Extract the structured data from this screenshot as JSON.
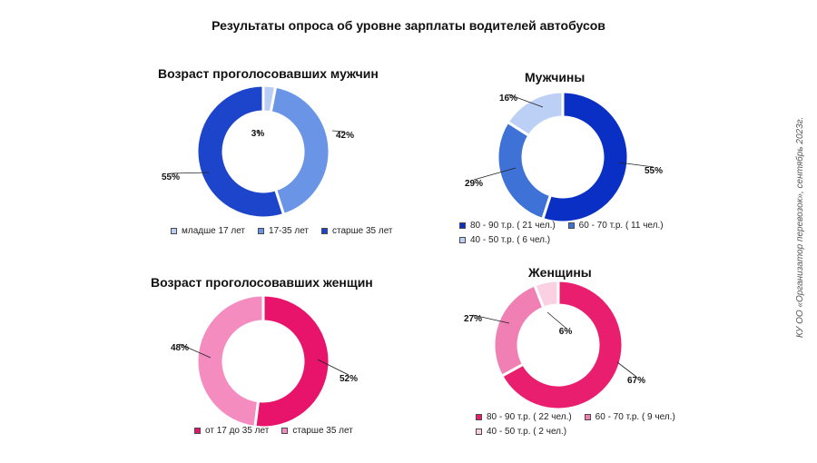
{
  "title": "Результаты опроса об уровне зарплаты водителей автобусов",
  "source": "КУ ОО «Организатор перевозок», сентябрь 2023г.",
  "chart_data": [
    {
      "type": "pie",
      "id": "men_age",
      "title": "Возраст проголосовавших мужчин",
      "hole": true,
      "categories": [
        "младше 17 лет",
        "17-35 лет",
        "старше 35 лет"
      ],
      "values": [
        3,
        42,
        55
      ],
      "labels": [
        "3%",
        "42%",
        "55%"
      ],
      "colors": [
        "#b9cdf5",
        "#6a95e6",
        "#1d45cc"
      ],
      "legend_rows": [
        [
          0,
          1,
          2
        ]
      ]
    },
    {
      "type": "pie",
      "id": "men_salary",
      "title": "Мужчины",
      "hole": true,
      "categories": [
        "80 - 90 т.р. ( 21 чел.)",
        "60 - 70 т.р. ( 11 чел.)",
        "40 - 50 т.р. ( 6 чел.)"
      ],
      "values": [
        55,
        29,
        16
      ],
      "labels": [
        "55%",
        "29%",
        "16%"
      ],
      "colors": [
        "#0a2fc4",
        "#3f72d6",
        "#bcd0f6"
      ],
      "legend_rows": [
        [
          0,
          1
        ],
        [
          2
        ]
      ]
    },
    {
      "type": "pie",
      "id": "women_age",
      "title": "Возраст проголосовавших женщин",
      "hole": true,
      "categories": [
        "от 17 до 35 лет",
        "старше 35 лет"
      ],
      "values": [
        52,
        48
      ],
      "labels": [
        "52%",
        "48%"
      ],
      "colors": [
        "#e8136b",
        "#f58cbf"
      ],
      "legend_rows": [
        [
          0,
          1
        ]
      ]
    },
    {
      "type": "pie",
      "id": "women_salary",
      "title": "Женщины",
      "hole": true,
      "categories": [
        "80 - 90 т.р. ( 22 чел.)",
        "60 - 70 т.р. ( 9 чел.)",
        "40 - 50 т.р. ( 2 чел.)"
      ],
      "values": [
        67,
        27,
        6
      ],
      "labels": [
        "67%",
        "27%",
        "6%"
      ],
      "colors": [
        "#ea1e6e",
        "#f07fb4",
        "#fbd0e3"
      ],
      "legend_rows": [
        [
          0,
          1
        ],
        [
          2
        ]
      ]
    }
  ]
}
